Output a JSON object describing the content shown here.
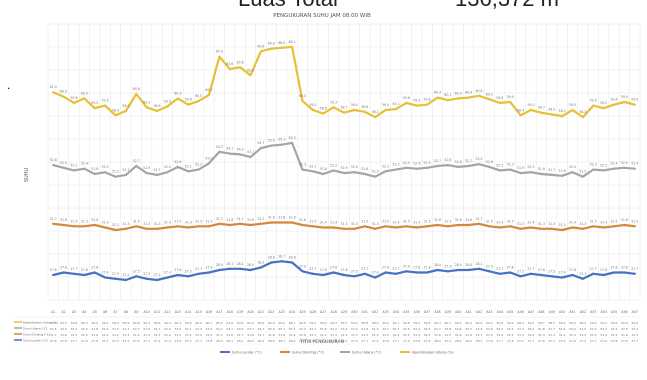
{
  "header_crop": {
    "label": "Luas Total",
    "value": "136,372 m"
  },
  "chart_data": {
    "type": "line",
    "title": "PENGUKURAN SUHU JAM 08:00 WIB",
    "xlabel": "TITIK PENGUKURAN",
    "ylabel": "SUHU",
    "categories": [
      "A1",
      "A2",
      "A3",
      "A4",
      "A5",
      "A6",
      "A7",
      "A8",
      "A9",
      "A10",
      "A11",
      "A12",
      "A13",
      "A14",
      "A15",
      "A16",
      "A17",
      "A18",
      "A19",
      "A20",
      "A21",
      "A22",
      "A23",
      "A24",
      "A25",
      "A26",
      "A27",
      "A28",
      "A29",
      "A30",
      "A31",
      "A32",
      "A33",
      "A34",
      "A35",
      "A36",
      "A37",
      "A38",
      "A39",
      "A40",
      "A41",
      "A42",
      "A43",
      "A44",
      "A45",
      "A46",
      "A47",
      "A48",
      "A49",
      "A50",
      "A51",
      "A52",
      "A53",
      "A54",
      "A55",
      "A56",
      "A57"
    ],
    "series": [
      {
        "name": "Kelembaban Udara (%)",
        "color": "#e7c033",
        "values": [
          61.0,
          60.5,
          59.8,
          60.3,
          59.2,
          59.5,
          58.4,
          58.9,
          60.8,
          59.3,
          58.9,
          59.4,
          60.3,
          59.6,
          60.0,
          60.7,
          65.0,
          63.6,
          63.8,
          62.9,
          65.6,
          65.9,
          66.0,
          66.1,
          60.0,
          59.0,
          58.6,
          59.3,
          58.7,
          59.0,
          58.8,
          58.2,
          59.0,
          59.1,
          59.8,
          59.5,
          59.6,
          60.4,
          60.1,
          60.3,
          60.4,
          60.6,
          60.2,
          59.8,
          59.9,
          58.4,
          59.0,
          58.7,
          58.5,
          58.3,
          59.0,
          58.2,
          59.5,
          59.2,
          59.6,
          59.9,
          59.6
        ]
      },
      {
        "name": "Suhu Udara (°C)",
        "color": "#a5a5a5",
        "values": [
          52.8,
          52.5,
          52.2,
          52.4,
          51.8,
          52.0,
          51.5,
          51.7,
          52.7,
          51.9,
          51.7,
          52.0,
          52.6,
          52.1,
          52.3,
          53.0,
          54.3,
          54.1,
          54.0,
          53.7,
          54.7,
          55.0,
          55.1,
          55.3,
          52.3,
          52.1,
          51.8,
          52.2,
          51.9,
          52.0,
          51.8,
          51.5,
          52.1,
          52.3,
          52.5,
          52.4,
          52.5,
          52.7,
          52.8,
          52.6,
          52.7,
          52.9,
          52.6,
          52.2,
          52.3,
          51.9,
          52.0,
          51.8,
          51.7,
          51.6,
          52.0,
          51.5,
          52.3,
          52.2,
          52.4,
          52.5,
          52.4
        ]
      },
      {
        "name": "Suhu Dinding (°C)",
        "color": "#d4893a",
        "values": [
          31.7,
          31.6,
          31.5,
          31.5,
          31.6,
          31.4,
          31.2,
          31.3,
          31.5,
          31.3,
          31.3,
          31.4,
          31.5,
          31.4,
          31.5,
          31.5,
          31.7,
          31.6,
          31.7,
          31.6,
          31.7,
          31.8,
          31.8,
          31.8,
          31.6,
          31.5,
          31.4,
          31.4,
          31.3,
          31.3,
          31.5,
          31.3,
          31.5,
          31.4,
          31.5,
          31.4,
          31.5,
          31.6,
          31.5,
          31.6,
          31.6,
          31.7,
          31.5,
          31.4,
          31.5,
          31.3,
          31.4,
          31.3,
          31.3,
          31.2,
          31.4,
          31.3,
          31.5,
          31.4,
          31.5,
          31.6,
          31.5
        ]
      },
      {
        "name": "Suhu Lantai (°C)",
        "color": "#4472c4",
        "values": [
          27.6,
          27.8,
          27.7,
          27.6,
          27.8,
          27.4,
          27.3,
          27.2,
          27.5,
          27.3,
          27.2,
          27.4,
          27.6,
          27.5,
          27.7,
          27.8,
          28.0,
          28.1,
          28.1,
          28.0,
          28.2,
          28.6,
          28.7,
          28.6,
          27.9,
          27.7,
          27.6,
          27.8,
          27.6,
          27.5,
          27.7,
          27.4,
          27.8,
          27.7,
          27.9,
          27.8,
          27.8,
          28.0,
          27.9,
          28.0,
          28.0,
          28.1,
          27.9,
          27.7,
          27.8,
          27.5,
          27.7,
          27.6,
          27.5,
          27.4,
          27.6,
          27.3,
          27.7,
          27.6,
          27.8,
          27.8,
          27.7
        ]
      }
    ],
    "legend_position": "bottom",
    "grid": true
  }
}
